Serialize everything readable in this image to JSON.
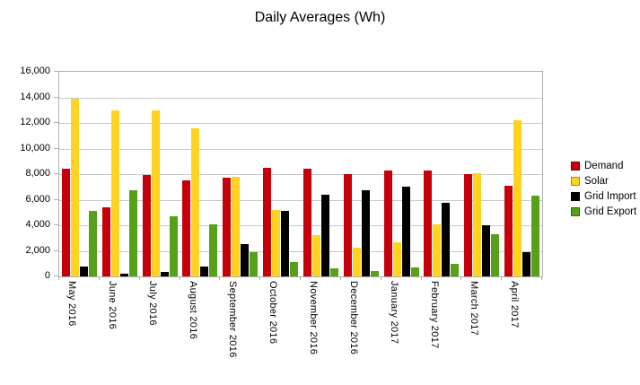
{
  "title": "Daily Averages (Wh)",
  "colors": {
    "demand": "#c5000b",
    "solar": "#ffd320",
    "grid_import": "#000000",
    "grid_export": "#57a019",
    "gridline": "#c9c9c9",
    "axis": "#aeaeae",
    "text": "#000000",
    "background": "#ffffff"
  },
  "chart_data": {
    "type": "bar",
    "title": "Daily Averages (Wh)",
    "xlabel": "",
    "ylabel": "",
    "ylim": [
      0,
      16000
    ],
    "ytick_step": 2000,
    "ytick_labels_top_to_bottom": [
      "16,000",
      "14,000",
      "12,000",
      "10,000",
      "8,000",
      "6,000",
      "4,000",
      "2,000",
      "0"
    ],
    "grid": true,
    "legend_position": "right",
    "categories": [
      "May 2016",
      "June 2016",
      "July 2016",
      "August 2016",
      "September 2016",
      "October 2016",
      "November 2016",
      "December 2016",
      "January 2017",
      "February 2017",
      "March 2017",
      "April 2017"
    ],
    "series": [
      {
        "name": "Demand",
        "color": "#c5000b",
        "values": [
          8400,
          5400,
          7900,
          7500,
          7700,
          8500,
          8400,
          8000,
          8250,
          8300,
          8000,
          7100
        ]
      },
      {
        "name": "Solar",
        "color": "#ffd320",
        "values": [
          13900,
          13000,
          13000,
          11600,
          7800,
          5200,
          3200,
          2250,
          2700,
          4100,
          8100,
          12200
        ]
      },
      {
        "name": "Grid Import",
        "color": "#000000",
        "values": [
          750,
          200,
          350,
          800,
          2500,
          5100,
          6400,
          6750,
          7000,
          5750,
          4000,
          1900
        ]
      },
      {
        "name": "Grid Export",
        "color": "#57a019",
        "values": [
          5100,
          6750,
          4700,
          4050,
          1900,
          1150,
          650,
          450,
          700,
          1000,
          3300,
          6300
        ]
      }
    ]
  }
}
